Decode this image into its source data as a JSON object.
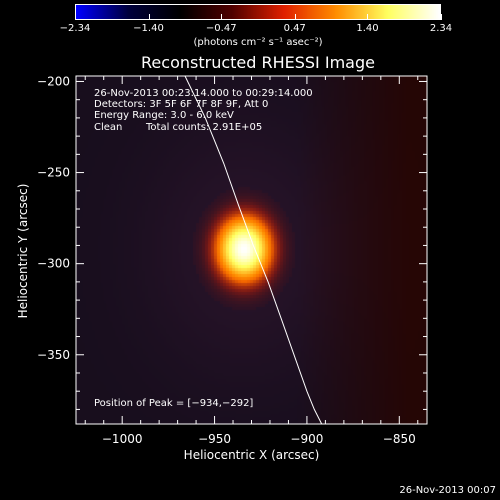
{
  "chart_data": {
    "type": "heatmap",
    "title": "Reconstructed RHESSI Image",
    "xlabel": "Heliocentric X (arcsec)",
    "ylabel": "Heliocentric Y (arcsec)",
    "xlim": [
      -1025,
      -835
    ],
    "ylim": [
      -388,
      -197
    ],
    "x_ticks": [
      -1000,
      -950,
      -900,
      -850
    ],
    "x_tick_labels": [
      "−1000",
      "−950",
      "−900",
      "−850"
    ],
    "y_ticks": [
      -200,
      -250,
      -300,
      -350
    ],
    "y_tick_labels": [
      "−200",
      "−250",
      "−300",
      "−350"
    ],
    "colorbar": {
      "min": -2.34,
      "max": 2.34,
      "ticks": [
        -2.34,
        -1.4,
        -0.47,
        0.47,
        1.4,
        2.34
      ],
      "tick_labels": [
        "−2.34",
        "−1.40",
        "−0.47",
        "0.47",
        "1.40",
        "2.34"
      ],
      "units_label": "(photons cm⁻² s⁻¹ asec⁻²)",
      "colors": [
        "#0000ff",
        "#00003c",
        "#000000",
        "#500000",
        "#e02000",
        "#ff8c00",
        "#ffff60",
        "#ffffff"
      ]
    },
    "source": {
      "peak_x": -934,
      "peak_y": -292,
      "sigma_x": 10,
      "sigma_y": 12,
      "peak_value": 2.34
    },
    "limb": {
      "x": [
        -966,
        -955,
        -945,
        -937,
        -929,
        -921,
        -914,
        -907,
        -900,
        -896,
        -892
      ],
      "y": [
        -197,
        -220,
        -245,
        -268,
        -290,
        -310,
        -330,
        -350,
        -370,
        -380,
        -388
      ],
      "color": "#ffffff"
    },
    "annotations": {
      "time_range": "26-Nov-2013 00:23:14.000 to 00:29:14.000",
      "detectors": "Detectors: 3F 5F 6F 7F 8F 9F, Att 0",
      "energy_range": "Energy Range: 3.0 - 6.0 keV",
      "method": "Clean",
      "total_counts": "Total counts: 2.91E+05",
      "peak_position": "Position of Peak = [−934,−292]"
    },
    "footer_timestamp": "26-Nov-2013 00:07",
    "background_colors": {
      "disk_haze": "#22142a",
      "outer_glow": "#350908"
    }
  }
}
